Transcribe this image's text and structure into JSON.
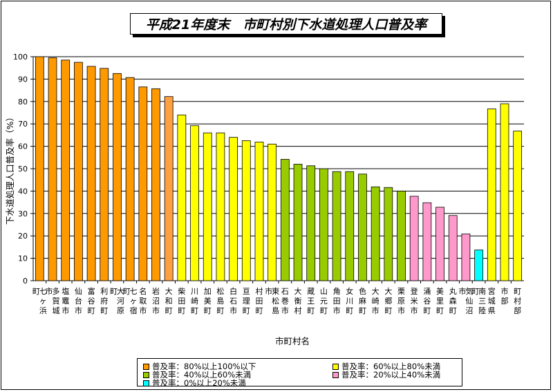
{
  "chart_data": {
    "type": "bar",
    "title": "平成21年度末　市町村別下水道処理人口普及率",
    "xlabel": "市町村名",
    "ylabel": "下水道処理人口普及率（%）",
    "ylim": [
      0,
      100
    ],
    "yticks": [
      0,
      10,
      20,
      30,
      40,
      50,
      60,
      70,
      80,
      90,
      100
    ],
    "grid": true,
    "legend_position": "bottom",
    "categories": [
      "七ヶ浜町",
      "多賀城市",
      "塩竈市",
      "仙台市",
      "富谷町",
      "利府町",
      "大河原町",
      "七ヶ宿町",
      "名取市",
      "岩沼市",
      "大和町",
      "柴田町",
      "川崎町",
      "加美町",
      "松島町",
      "白石市",
      "亘理町",
      "村田町",
      "東松島市",
      "石巻市",
      "大衡村",
      "蔵王町",
      "山元町",
      "角田市",
      "女川町",
      "色麻町",
      "大崎市",
      "大郷町",
      "栗原市",
      "登米市",
      "涌谷町",
      "美里町",
      "丸森町",
      "気仙沼市",
      "南三陸町",
      "宮城県",
      "市部",
      "町村部"
    ],
    "values": [
      100,
      99.5,
      98.5,
      97.5,
      95.7,
      94.8,
      92.5,
      90.7,
      86.5,
      85.7,
      82.2,
      74.0,
      69.2,
      66.0,
      66.0,
      64.0,
      62.5,
      61.9,
      61.0,
      54.2,
      52.0,
      51.3,
      50.0,
      48.7,
      48.7,
      47.6,
      41.9,
      41.6,
      40.0,
      37.7,
      34.8,
      32.8,
      29.1,
      20.9,
      13.7,
      76.7,
      79.0,
      66.8
    ],
    "groups": [
      "80-100",
      "80-100",
      "80-100",
      "80-100",
      "80-100",
      "80-100",
      "80-100",
      "80-100",
      "80-100",
      "80-100",
      "80-100-light",
      "60-80",
      "60-80",
      "60-80",
      "60-80",
      "60-80",
      "60-80",
      "60-80",
      "60-80",
      "40-60",
      "40-60",
      "40-60",
      "40-60",
      "40-60",
      "40-60",
      "40-60",
      "40-60",
      "40-60",
      "40-60",
      "20-40",
      "20-40",
      "20-40",
      "20-40",
      "20-40",
      "0-20",
      "60-80",
      "60-80",
      "60-80"
    ],
    "colors": {
      "80-100": "#ff9900",
      "80-100-light": "#ffa040",
      "60-80": "#ffff00",
      "40-60": "#99cc00",
      "20-40": "#ff99cc",
      "0-20": "#00ffff"
    },
    "legend": [
      {
        "label": "普及率：80%以上100%以下",
        "group": "80-100"
      },
      {
        "label": "普及率：60%以上80%未満",
        "group": "60-80"
      },
      {
        "label": "普及率：40%以上60%未満",
        "group": "40-60"
      },
      {
        "label": "普及率：20%以上40%未満",
        "group": "20-40"
      },
      {
        "label": "普及率：0%以上20%未満",
        "group": "0-20"
      }
    ]
  }
}
